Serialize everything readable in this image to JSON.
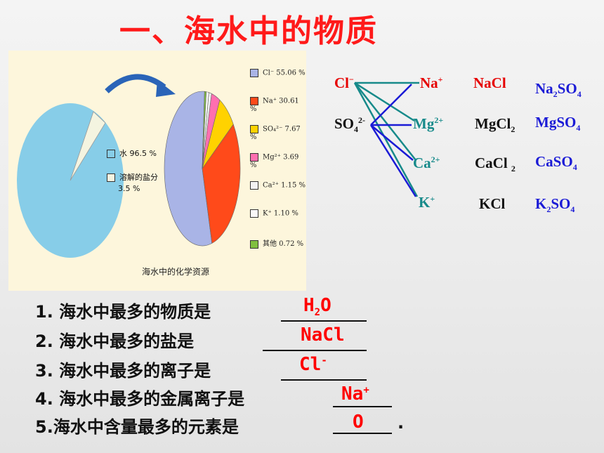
{
  "title": "一、海水中的物质",
  "figure": {
    "caption": "海水中的化学资源",
    "small_pie_legend": [
      {
        "label": "水 96.5 %",
        "color": "#87cde8"
      },
      {
        "label": "溶解的盐分",
        "color": "#f4f4e0"
      },
      {
        "label": "3.5 %",
        "color": ""
      }
    ],
    "big_pie_legend": [
      {
        "label": "Cl⁻ 55.06 %",
        "color": "#a9b4e6"
      },
      {
        "label": "Na⁺ 30.61 %",
        "color": "#ff4a1a"
      },
      {
        "label": "SO₄²⁻ 7.67 %",
        "color": "#ffd200"
      },
      {
        "label": "Mg²⁺ 3.69 %",
        "color": "#ff6fb0"
      },
      {
        "label": "Ca²⁺ 1.15 %",
        "color": "#f2f2f2"
      },
      {
        "label": "K⁺ 1.10 %",
        "color": "#f8f8f8"
      },
      {
        "label": "其他 0.72 %",
        "color": "#7fbf3f"
      }
    ],
    "small_pie_values": [
      96.5,
      3.5
    ],
    "big_pie_values": [
      55.06,
      30.61,
      7.67,
      3.69,
      1.15,
      1.1,
      0.72
    ]
  },
  "ions": {
    "anion1": "Cl",
    "anion1_charge": "−",
    "anion2": "SO",
    "anion2_sub": "4",
    "anion2_charge": "2-",
    "cat1": "Na",
    "cat1_charge": "+",
    "cat2": "Mg",
    "cat2_charge": "2+",
    "cat3": "Ca",
    "cat3_charge": "2+",
    "cat4": "K",
    "cat4_charge": "+"
  },
  "chlorides": {
    "c1": "NaCl",
    "c2": "MgCl",
    "c2_sub": "2",
    "c3": "CaCl",
    "c3_sub": "2",
    "c4": "KCl"
  },
  "sulfates": {
    "s1_a": "Na",
    "s1_sub1": "2",
    "s1_b": "SO",
    "s1_sub2": "4",
    "s2_a": "MgSO",
    "s2_sub": "4",
    "s3_a": "CaSO",
    "s3_sub": "4",
    "s4_a": "K",
    "s4_sub1": "2",
    "s4_b": "SO",
    "s4_sub2": "4"
  },
  "questions": [
    {
      "text": "1.  海水中最多的物质是",
      "answer": "H",
      "answer_sub": "2",
      "answer_tail": "O"
    },
    {
      "text": "2.  海水中最多的盐是",
      "answer": "NaCl"
    },
    {
      "text": "3.  海水中最多的离子是",
      "answer": "Cl",
      "answer_sup": "-"
    },
    {
      "text": "4.  海水中最多的金属离子是",
      "answer": "Na",
      "answer_sup": "+"
    },
    {
      "text": "5.海水中含量最多的元素是",
      "answer": "O",
      "tail": "."
    }
  ]
}
